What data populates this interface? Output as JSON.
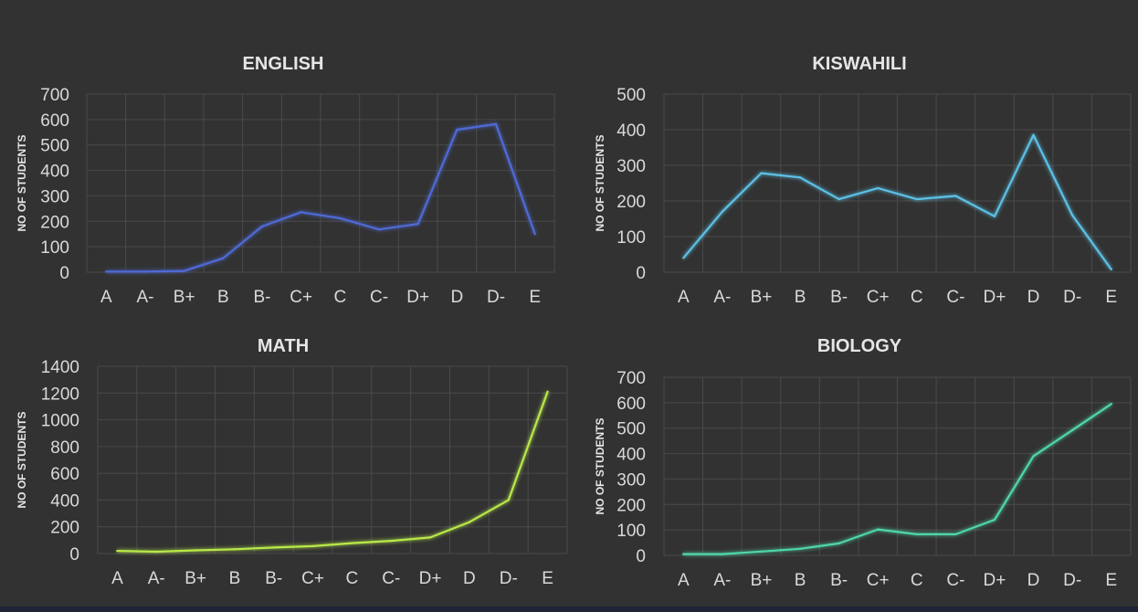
{
  "chart_data": [
    {
      "type": "line",
      "title": "ENGLISH",
      "ylabel": "NO OF STUDENTS",
      "xlabel": "",
      "categories": [
        "A",
        "A-",
        "B+",
        "B",
        "B-",
        "C+",
        "C",
        "C-",
        "D+",
        "D",
        "D-",
        "E"
      ],
      "series": [
        {
          "values": [
            2,
            2,
            5,
            55,
            180,
            236,
            212,
            168,
            190,
            560,
            582,
            150
          ]
        }
      ],
      "ylim": [
        0,
        700
      ],
      "yticks": [
        "0",
        "100",
        "200",
        "300",
        "400",
        "500",
        "600",
        "700"
      ],
      "grid": true,
      "color": "#4f6ad6"
    },
    {
      "type": "line",
      "title": "KISWAHILI",
      "ylabel": "NO OF STUDENTS",
      "xlabel": "",
      "categories": [
        "A",
        "A-",
        "B+",
        "B",
        "B-",
        "C+",
        "C",
        "C-",
        "D+",
        "D",
        "D-",
        "E"
      ],
      "series": [
        {
          "values": [
            40,
            170,
            278,
            266,
            205,
            236,
            205,
            214,
            157,
            385,
            160,
            8
          ]
        }
      ],
      "ylim": [
        0,
        500
      ],
      "yticks": [
        "0",
        "100",
        "200",
        "300",
        "400",
        "500"
      ],
      "grid": true,
      "color": "#5cc1e6"
    },
    {
      "type": "line",
      "title": "MATH",
      "ylabel": "NO OF STUDENTS",
      "xlabel": "",
      "categories": [
        "A",
        "A-",
        "B+",
        "B",
        "B-",
        "C+",
        "C",
        "C-",
        "D+",
        "D",
        "D-",
        "E"
      ],
      "series": [
        {
          "values": [
            20,
            14,
            24,
            32,
            45,
            55,
            78,
            95,
            120,
            235,
            400,
            1210
          ]
        }
      ],
      "ylim": [
        0,
        1400
      ],
      "yticks": [
        "0",
        "200",
        "400",
        "600",
        "800",
        "1000",
        "1200",
        "1400"
      ],
      "grid": true,
      "color": "#b8e84a"
    },
    {
      "type": "line",
      "title": "BIOLOGY",
      "ylabel": "NO OF STUDENTS",
      "xlabel": "",
      "categories": [
        "A",
        "A-",
        "B+",
        "B",
        "B-",
        "C+",
        "C",
        "C-",
        "D+",
        "D",
        "D-",
        "E"
      ],
      "series": [
        {
          "values": [
            5,
            5,
            15,
            26,
            47,
            102,
            83,
            83,
            140,
            390,
            492,
            595
          ]
        }
      ],
      "ylim": [
        0,
        700
      ],
      "yticks": [
        "0",
        "100",
        "200",
        "300",
        "400",
        "500",
        "600",
        "700"
      ],
      "grid": true,
      "color": "#4fd6a8"
    }
  ]
}
